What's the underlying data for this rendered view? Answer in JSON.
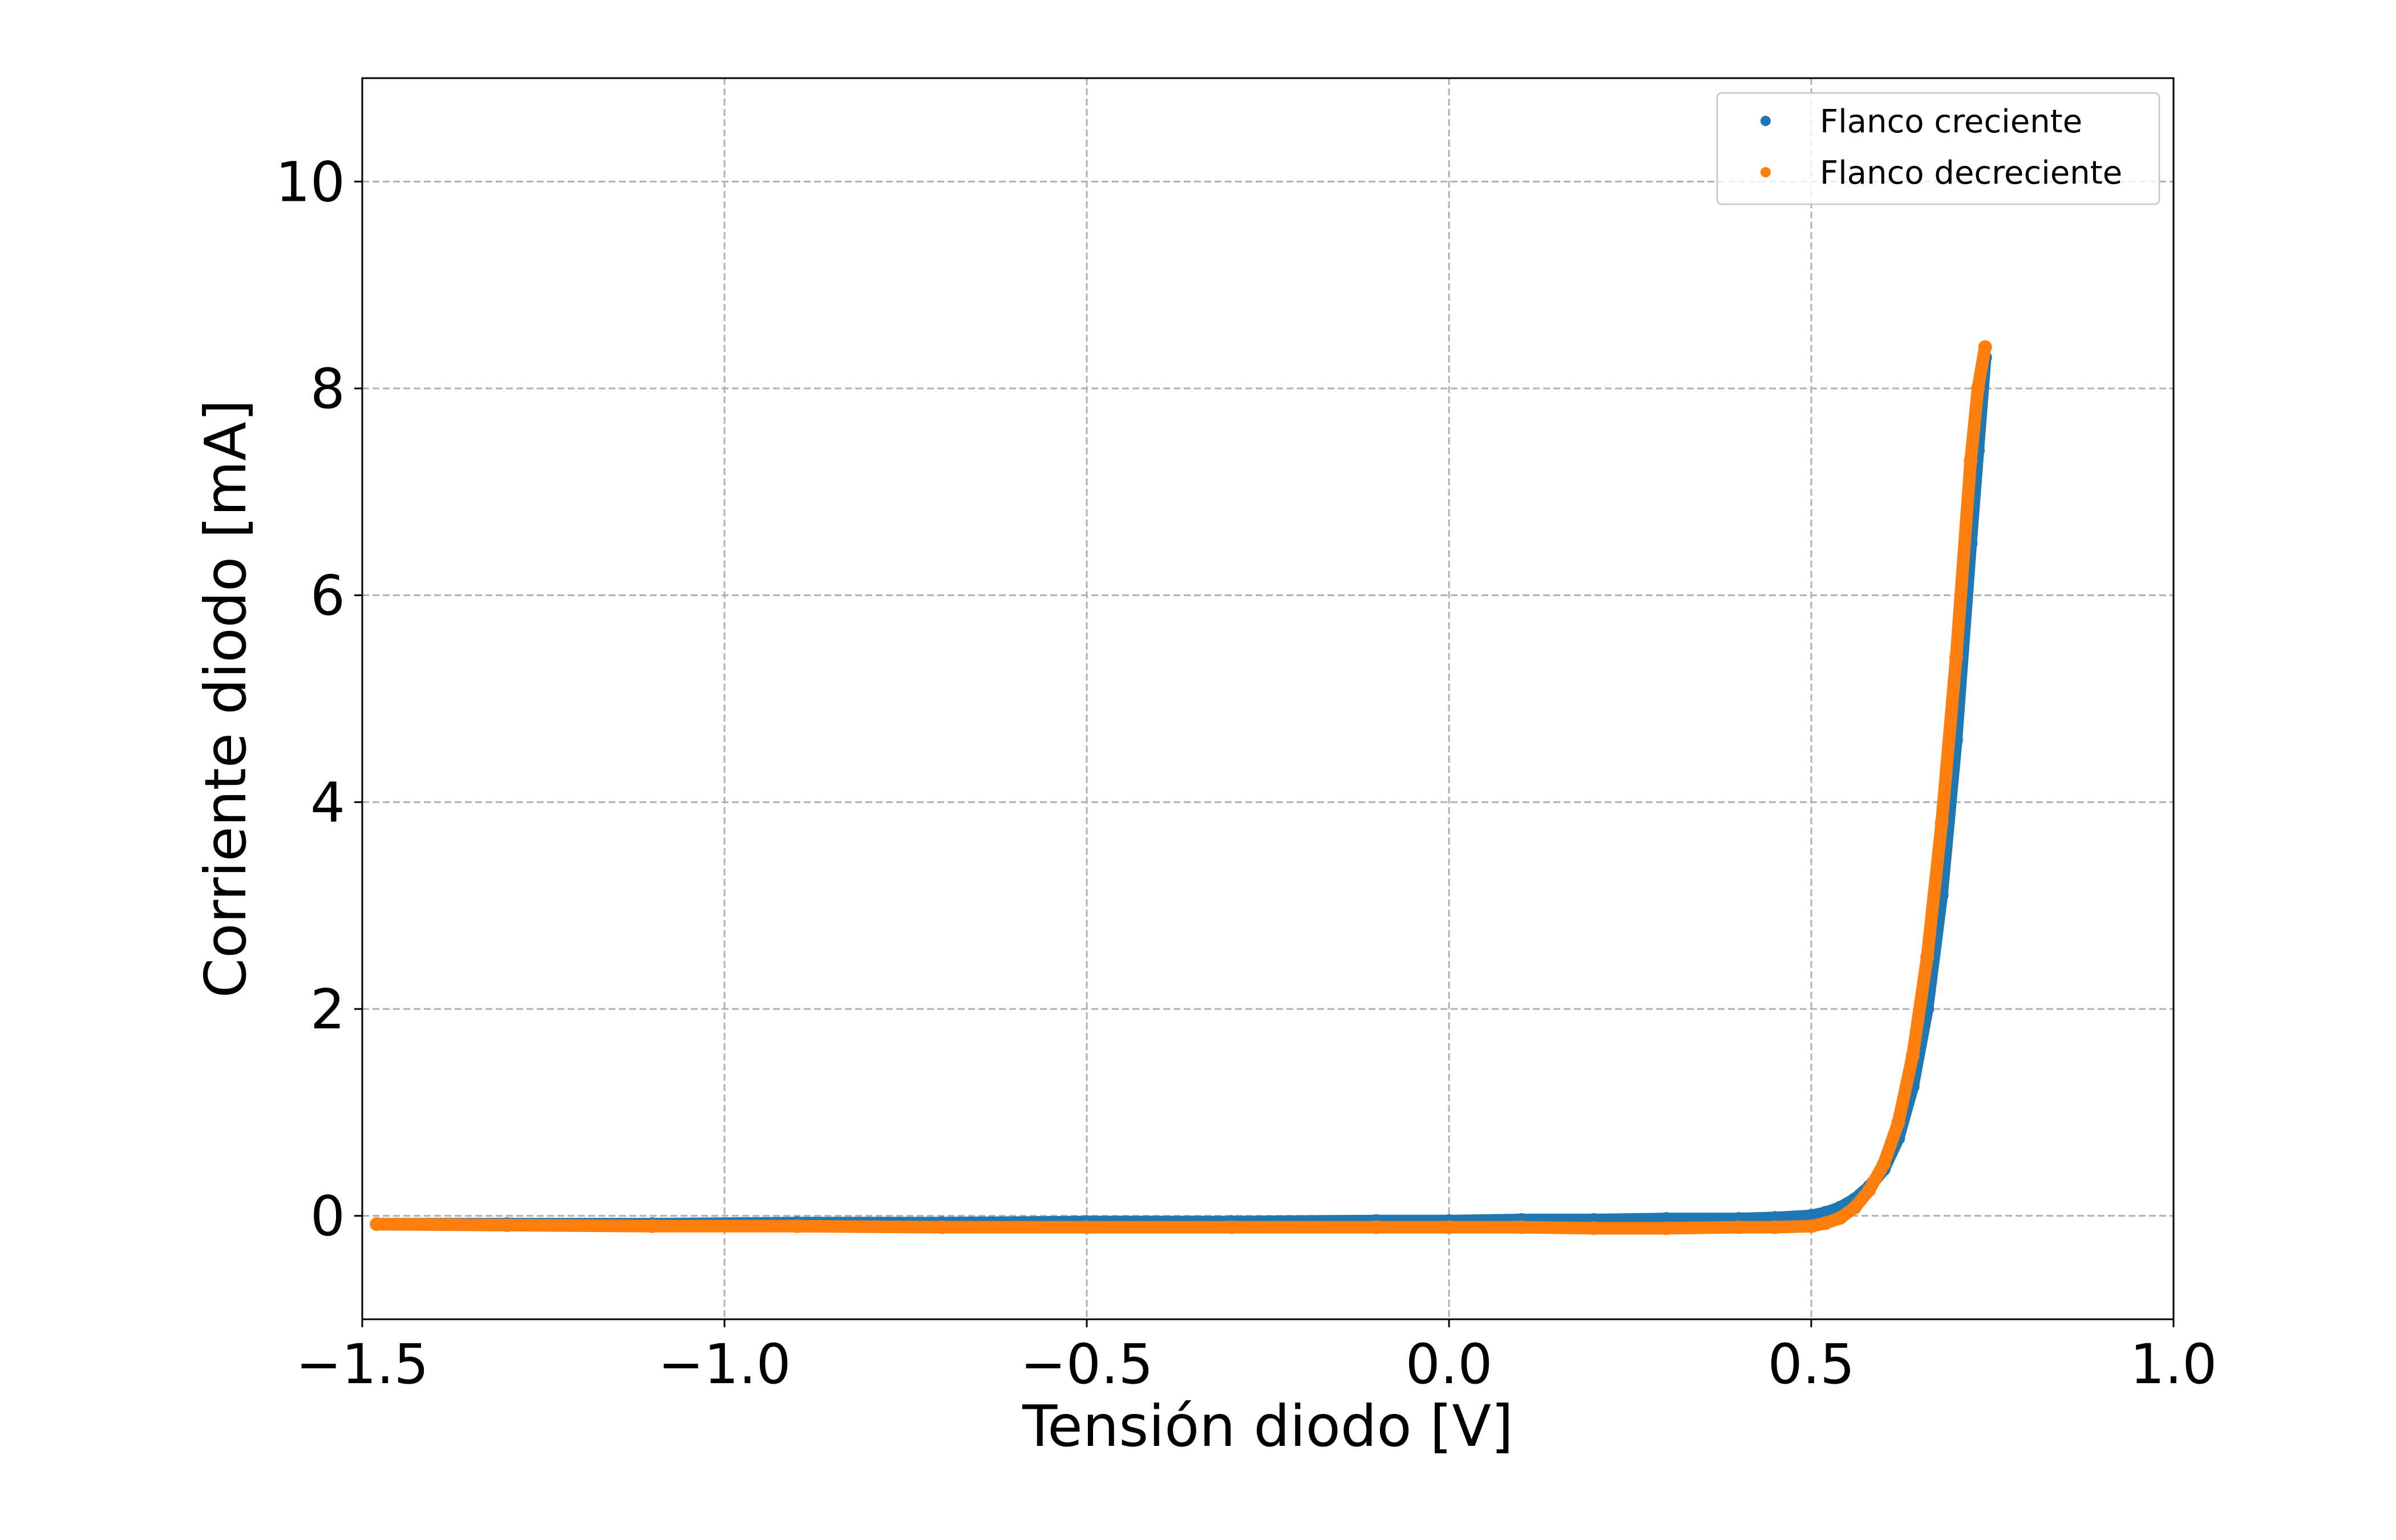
{
  "chart_data": {
    "type": "scatter",
    "xlabel": "Tensión diodo [V]",
    "ylabel": "Corriente diodo [mA]",
    "xlim": [
      -1.5,
      1.0
    ],
    "ylim": [
      -1.0,
      11.0
    ],
    "grid": true,
    "legend_position": "top-right",
    "x_ticks": [
      -1.5,
      -1.0,
      -0.5,
      0.0,
      0.5,
      1.0
    ],
    "x_tick_labels": [
      "−1.5",
      "−1.0",
      "−0.5",
      "0.0",
      "0.5",
      "1.0"
    ],
    "y_ticks": [
      0,
      2,
      4,
      6,
      8,
      10
    ],
    "y_tick_labels": [
      "0",
      "2",
      "4",
      "6",
      "8",
      "10"
    ],
    "series": [
      {
        "name": "Flanco creciente",
        "color": "#1f77b4",
        "x": [
          -1.48,
          -1.3,
          -1.1,
          -0.9,
          -0.7,
          -0.5,
          -0.3,
          -0.1,
          0.0,
          0.1,
          0.2,
          0.3,
          0.4,
          0.45,
          0.5,
          0.52,
          0.54,
          0.56,
          0.58,
          0.6,
          0.62,
          0.64,
          0.66,
          0.68,
          0.7,
          0.72,
          0.73,
          0.74
        ],
        "y": [
          -0.08,
          -0.08,
          -0.08,
          -0.07,
          -0.07,
          -0.06,
          -0.06,
          -0.05,
          -0.05,
          -0.04,
          -0.04,
          -0.03,
          -0.03,
          -0.02,
          0.0,
          0.03,
          0.08,
          0.16,
          0.28,
          0.45,
          0.75,
          1.25,
          2.0,
          3.1,
          4.6,
          6.5,
          7.4,
          8.3
        ]
      },
      {
        "name": "Flanco decreciente",
        "color": "#ff7f0e",
        "x": [
          -1.48,
          -1.3,
          -1.1,
          -0.9,
          -0.7,
          -0.5,
          -0.3,
          -0.1,
          0.0,
          0.1,
          0.2,
          0.3,
          0.4,
          0.45,
          0.5,
          0.52,
          0.54,
          0.56,
          0.58,
          0.6,
          0.62,
          0.64,
          0.66,
          0.68,
          0.7,
          0.72,
          0.73,
          0.74
        ],
        "y": [
          -0.08,
          -0.09,
          -0.1,
          -0.1,
          -0.11,
          -0.11,
          -0.11,
          -0.11,
          -0.11,
          -0.11,
          -0.12,
          -0.12,
          -0.11,
          -0.11,
          -0.1,
          -0.07,
          -0.02,
          0.08,
          0.25,
          0.5,
          0.9,
          1.55,
          2.5,
          3.8,
          5.4,
          7.3,
          8.0,
          8.4
        ]
      }
    ]
  }
}
